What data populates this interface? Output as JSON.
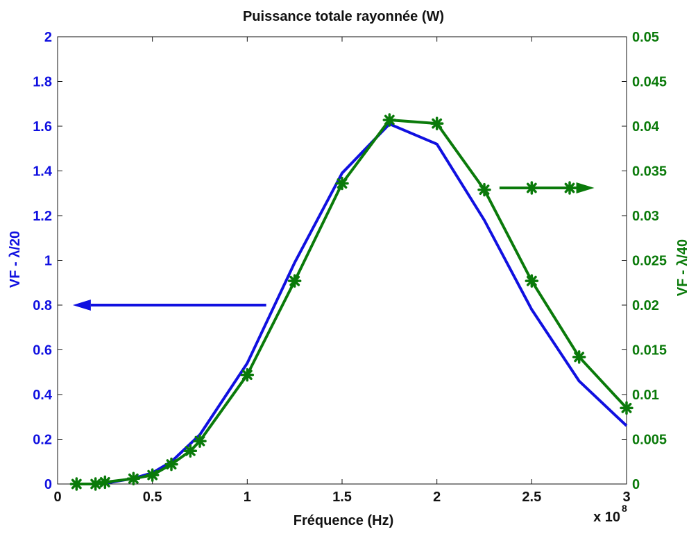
{
  "chart_data": {
    "type": "line",
    "title": "Puissance totale rayonnée (W)",
    "xlabel": "Fréquence (Hz)",
    "x_exponent_base": "x 10",
    "x_exponent_power": "8",
    "xlim": [
      0,
      3
    ],
    "xticks": [
      "0",
      "0.5",
      "1",
      "1.5",
      "2",
      "2.5",
      "3"
    ],
    "grid": false,
    "left_axis": {
      "label": "VF - λ/20",
      "ylim": [
        0,
        2
      ],
      "ticks": [
        "0",
        "0.2",
        "0.4",
        "0.6",
        "0.8",
        "1",
        "1.2",
        "1.4",
        "1.6",
        "1.8",
        "2"
      ],
      "color": "#1010e0"
    },
    "right_axis": {
      "label": "VF - λ/40",
      "ylim": [
        0,
        0.05
      ],
      "ticks": [
        "0",
        "0.005",
        "0.01",
        "0.015",
        "0.02",
        "0.025",
        "0.03",
        "0.035",
        "0.04",
        "0.045",
        "0.05"
      ],
      "color": "#0a7a0a"
    },
    "series": [
      {
        "axis": "left",
        "color": "#1010e0",
        "marker": "none",
        "x": [
          0.1,
          0.2,
          0.25,
          0.4,
          0.5,
          0.6,
          0.7,
          0.75,
          1.0,
          1.25,
          1.5,
          1.75,
          2.0,
          2.25,
          2.5,
          2.75,
          3.0
        ],
        "y": [
          0.0,
          0.0,
          0.003,
          0.025,
          0.05,
          0.1,
          0.18,
          0.22,
          0.54,
          0.99,
          1.39,
          1.61,
          1.52,
          1.18,
          0.78,
          0.46,
          0.26
        ]
      },
      {
        "axis": "right",
        "color": "#0a7a0a",
        "marker": "asterisk",
        "x": [
          0.1,
          0.2,
          0.25,
          0.4,
          0.5,
          0.6,
          0.7,
          0.75,
          1.0,
          1.25,
          1.5,
          1.75,
          2.0,
          2.25,
          2.5,
          2.75,
          3.0
        ],
        "y": [
          0.0,
          0.0,
          0.0002,
          0.0006,
          0.001,
          0.0022,
          0.0037,
          0.0048,
          0.0122,
          0.0227,
          0.0336,
          0.0407,
          0.0403,
          0.0329,
          0.0227,
          0.0142,
          0.0085
        ]
      }
    ],
    "annotations": [
      {
        "type": "arrow",
        "axis": "left",
        "from": [
          1.1,
          0.8
        ],
        "to": [
          0.08,
          0.8
        ],
        "color": "#1010e0"
      },
      {
        "type": "arrow",
        "axis": "right",
        "from": [
          2.33,
          0.0331
        ],
        "to": [
          2.83,
          0.0331
        ],
        "color": "#0a7a0a",
        "markers_at_x": [
          2.5,
          2.7
        ]
      }
    ]
  }
}
